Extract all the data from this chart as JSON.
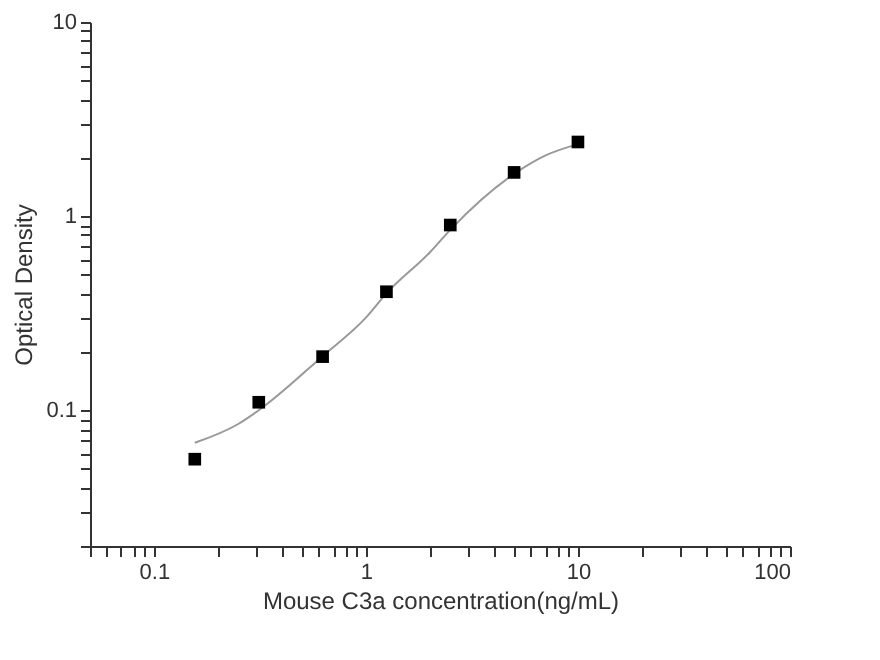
{
  "chart_data": {
    "type": "scatter",
    "xlabel": "Mouse C3a concentration(ng/mL)",
    "ylabel": "Optical Density",
    "log": "xy",
    "grid": false,
    "marker": "square",
    "xlim": [
      0.05,
      100
    ],
    "ylim": [
      0.02,
      10
    ],
    "xticks": [
      {
        "value": 0.05,
        "label": null
      },
      {
        "value": 0.06,
        "label": null
      },
      {
        "value": 0.07,
        "label": null
      },
      {
        "value": 0.08,
        "label": null
      },
      {
        "value": 0.09,
        "label": null
      },
      0.1,
      {
        "value": 0.2,
        "label": null
      },
      {
        "value": 0.3,
        "label": null
      },
      {
        "value": 0.4,
        "label": null
      },
      {
        "value": 0.5,
        "label": null
      },
      {
        "value": 0.6,
        "label": null
      },
      {
        "value": 0.7,
        "label": null
      },
      {
        "value": 0.8,
        "label": null
      },
      {
        "value": 0.9,
        "label": null
      },
      1,
      {
        "value": 2,
        "label": null
      },
      {
        "value": 3,
        "label": null
      },
      {
        "value": 4,
        "label": null
      },
      {
        "value": 5,
        "label": null
      },
      {
        "value": 6,
        "label": null
      },
      {
        "value": 7,
        "label": null
      },
      {
        "value": 8,
        "label": null
      },
      {
        "value": 9,
        "label": null
      },
      10,
      {
        "value": 20,
        "label": null
      },
      {
        "value": 30,
        "label": null
      },
      {
        "value": 40,
        "label": null
      },
      {
        "value": 50,
        "label": null
      },
      {
        "value": 60,
        "label": null
      },
      {
        "value": 70,
        "label": null
      },
      {
        "value": 80,
        "label": null
      },
      {
        "value": 90,
        "label": null
      },
      100
    ],
    "yticks": [
      {
        "value": 0.02,
        "label": null
      },
      {
        "value": 0.03,
        "label": null
      },
      {
        "value": 0.04,
        "label": null
      },
      {
        "value": 0.05,
        "label": null
      },
      {
        "value": 0.06,
        "label": null
      },
      {
        "value": 0.07,
        "label": null
      },
      {
        "value": 0.08,
        "label": null
      },
      {
        "value": 0.09,
        "label": null
      },
      0.1,
      {
        "value": 0.2,
        "label": null
      },
      {
        "value": 0.3,
        "label": null
      },
      {
        "value": 0.4,
        "label": null
      },
      {
        "value": 0.5,
        "label": null
      },
      {
        "value": 0.6,
        "label": null
      },
      {
        "value": 0.7,
        "label": null
      },
      {
        "value": 0.8,
        "label": null
      },
      {
        "value": 0.9,
        "label": null
      },
      1,
      {
        "value": 2,
        "label": null
      },
      {
        "value": 3,
        "label": null
      },
      {
        "value": 4,
        "label": null
      },
      {
        "value": 5,
        "label": null
      },
      {
        "value": 6,
        "label": null
      },
      {
        "value": 7,
        "label": null
      },
      {
        "value": 8,
        "label": null
      },
      {
        "value": 9,
        "label": null
      },
      10
    ],
    "series": [
      {
        "type": "line",
        "color": "#999999",
        "marker": "none",
        "x": [
          0.156,
          0.25,
          0.3125,
          0.625,
          1,
          1.25,
          2,
          2.5,
          5,
          7,
          10
        ],
        "values": [
          0.068,
          0.085,
          0.1,
          0.19,
          0.3,
          0.4,
          0.65,
          0.85,
          1.65,
          2.05,
          2.35
        ]
      },
      {
        "color": "#000000",
        "x": [
          0.156,
          0.3125,
          0.625,
          1.25,
          2.5,
          5,
          10
        ],
        "values": [
          0.056,
          0.11,
          0.189,
          0.408,
          0.9,
          1.68,
          2.41
        ]
      }
    ]
  }
}
